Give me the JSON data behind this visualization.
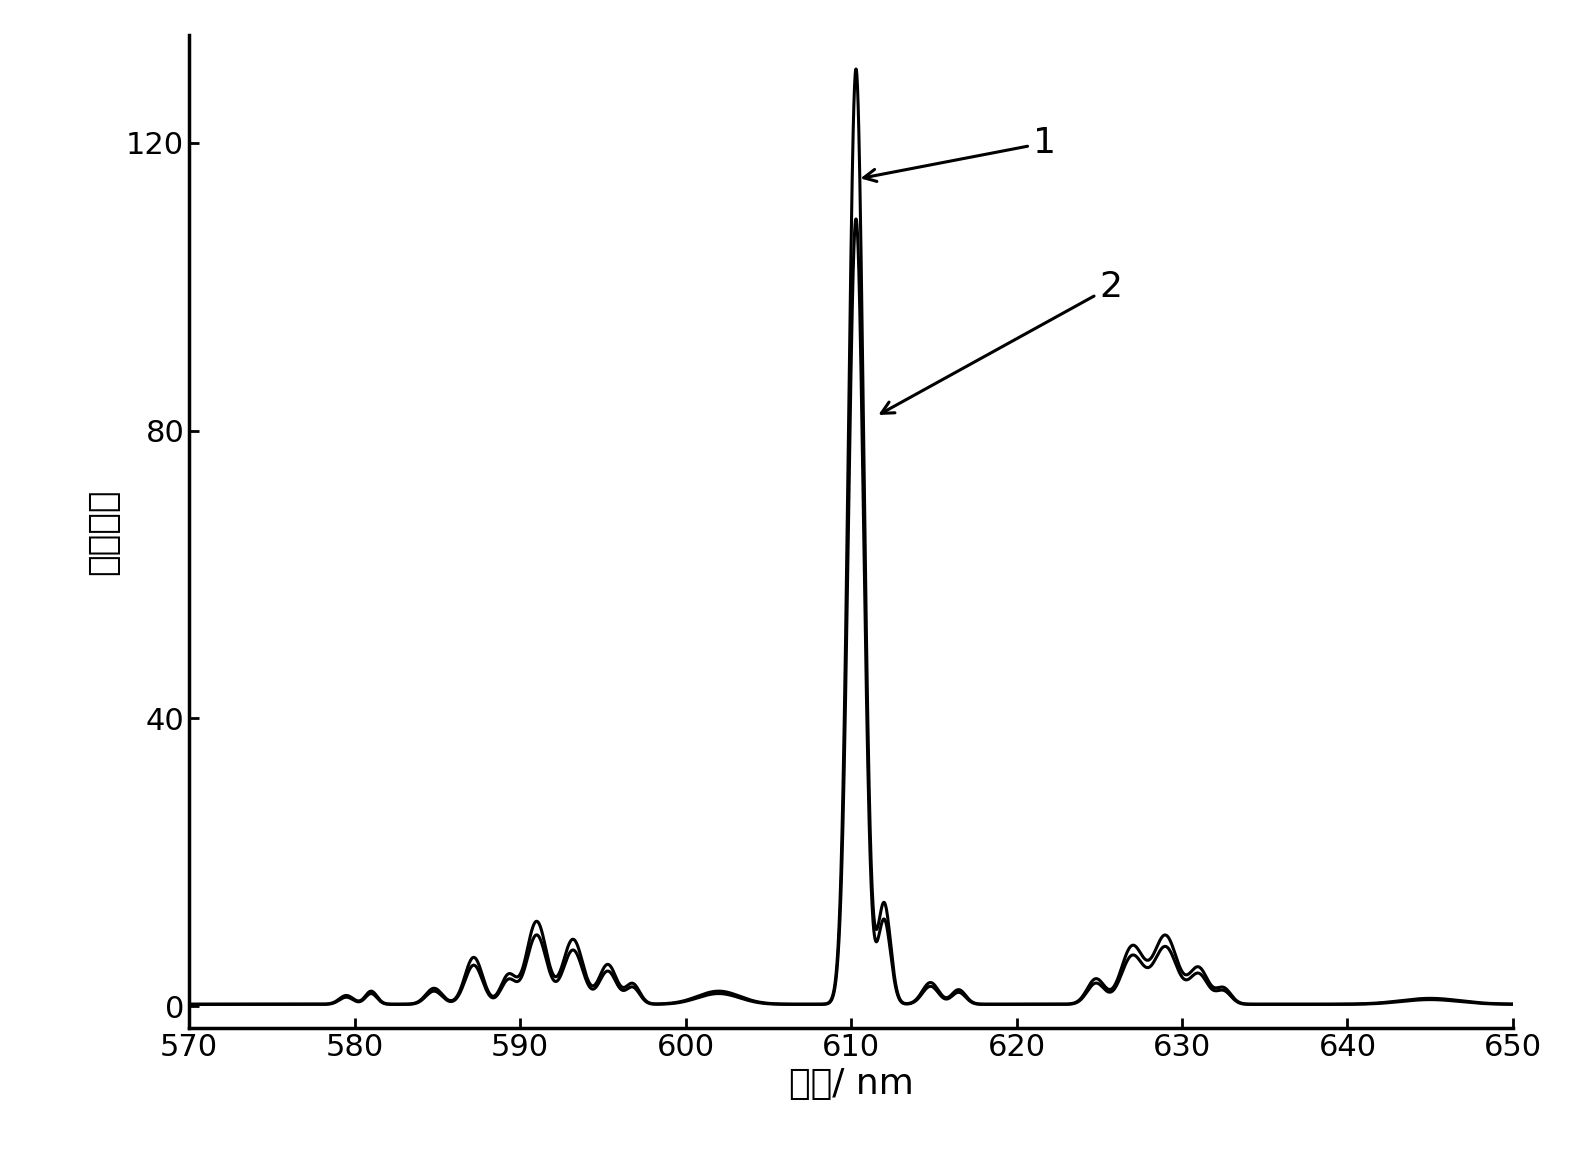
{
  "xlabel": "波长/ nm",
  "ylabel": "相对强度",
  "xlim": [
    570,
    650
  ],
  "ylim": [
    -3,
    135
  ],
  "xticks": [
    570,
    580,
    590,
    600,
    610,
    620,
    630,
    640,
    650
  ],
  "yticks": [
    0,
    40,
    80,
    120
  ],
  "line_color": "#000000",
  "background_color": "#ffffff",
  "linewidth1": 2.2,
  "linewidth2": 2.2,
  "label1": "1",
  "label2": "2",
  "xlabel_fontsize": 26,
  "ylabel_fontsize": 26,
  "tick_fontsize": 22,
  "annotation_fontsize": 26,
  "peaks": {
    "baseline": 0.3,
    "p579": [
      579.5,
      1.2,
      0.6
    ],
    "p581": [
      581.0,
      1.8,
      0.5
    ],
    "p585": [
      584.8,
      2.2,
      0.7
    ],
    "p587": [
      587.2,
      6.5,
      0.75
    ],
    "p589": [
      589.3,
      4.0,
      0.65
    ],
    "p591": [
      591.0,
      11.5,
      0.85
    ],
    "p593": [
      593.2,
      9.0,
      0.85
    ],
    "p595": [
      595.3,
      5.5,
      0.75
    ],
    "p597": [
      596.8,
      2.8,
      0.6
    ],
    "p602": [
      602.0,
      1.8,
      1.8
    ],
    "p610": [
      610.3,
      130.0,
      0.65
    ],
    "p612": [
      612.0,
      14.0,
      0.55
    ],
    "p615": [
      614.8,
      3.0,
      0.7
    ],
    "p617": [
      616.5,
      2.0,
      0.6
    ],
    "p625": [
      624.8,
      3.5,
      0.75
    ],
    "p627": [
      627.0,
      8.0,
      0.95
    ],
    "p629": [
      629.0,
      9.5,
      1.0
    ],
    "p631": [
      631.0,
      5.0,
      0.8
    ],
    "p633": [
      632.5,
      2.2,
      0.65
    ],
    "p645": [
      645.0,
      0.8,
      2.5
    ]
  },
  "scale2": 0.84
}
